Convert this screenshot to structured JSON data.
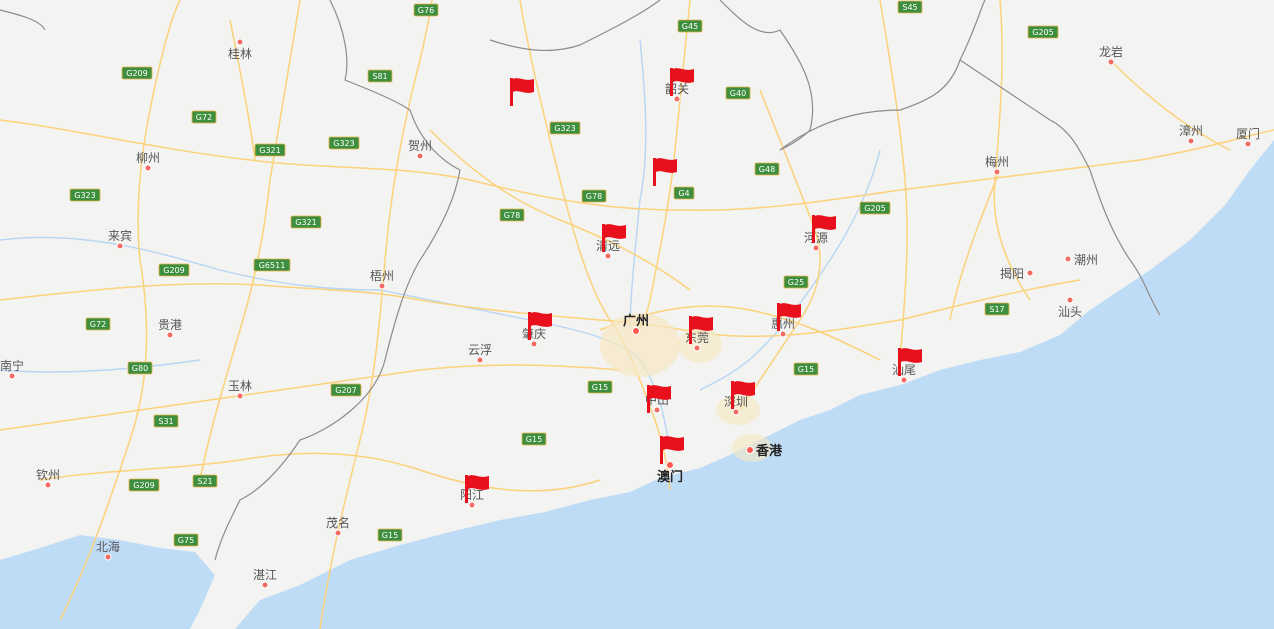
{
  "map": {
    "colors": {
      "land": "#f3f3f1",
      "sea": "#bfdcf7",
      "road": "#fbd27a",
      "border": "#8c8c8c",
      "river": "#b7d6f5",
      "highway_badge": "#3d8f3f",
      "flag": "#e8101c"
    },
    "cities": [
      {
        "id": "guilin",
        "name": "桂林",
        "major": false
      },
      {
        "id": "liuzhou",
        "name": "柳州",
        "major": false
      },
      {
        "id": "laibin",
        "name": "来宾",
        "major": false
      },
      {
        "id": "guigang",
        "name": "贵港",
        "major": false
      },
      {
        "id": "nanning",
        "name": "南宁",
        "major": false
      },
      {
        "id": "yulin",
        "name": "玉林",
        "major": false
      },
      {
        "id": "qinzhou",
        "name": "钦州",
        "major": false
      },
      {
        "id": "beihai",
        "name": "北海",
        "major": false
      },
      {
        "id": "wuzhou",
        "name": "梧州",
        "major": false
      },
      {
        "id": "hezhou",
        "name": "贺州",
        "major": false
      },
      {
        "id": "yunfu",
        "name": "云浮",
        "major": false
      },
      {
        "id": "maoming",
        "name": "茂名",
        "major": false
      },
      {
        "id": "zhanjiang",
        "name": "湛江",
        "major": false
      },
      {
        "id": "yangjiang",
        "name": "阳江",
        "major": false
      },
      {
        "id": "zhaoqing",
        "name": "肇庆",
        "major": false
      },
      {
        "id": "qingyuan",
        "name": "清远",
        "major": false
      },
      {
        "id": "shaoguan",
        "name": "韶关",
        "major": false
      },
      {
        "id": "guangzhou",
        "name": "广州",
        "major": true
      },
      {
        "id": "dongguan",
        "name": "东莞",
        "major": false
      },
      {
        "id": "zhongshan",
        "name": "中山",
        "major": false
      },
      {
        "id": "macau",
        "name": "澳门",
        "major": true
      },
      {
        "id": "shenzhen",
        "name": "深圳",
        "major": false
      },
      {
        "id": "hongkong",
        "name": "香港",
        "major": true
      },
      {
        "id": "huizhou",
        "name": "惠州",
        "major": false
      },
      {
        "id": "heyuan",
        "name": "河源",
        "major": false
      },
      {
        "id": "shanwei",
        "name": "汕尾",
        "major": false
      },
      {
        "id": "meizhou",
        "name": "梅州",
        "major": false
      },
      {
        "id": "jieyang",
        "name": "揭阳",
        "major": false
      },
      {
        "id": "chaozhou",
        "name": "潮州",
        "major": false
      },
      {
        "id": "shantou",
        "name": "汕头",
        "major": false
      },
      {
        "id": "longyan",
        "name": "龙岩",
        "major": false
      },
      {
        "id": "zhangzhou",
        "name": "漳州",
        "major": false
      },
      {
        "id": "xiamen",
        "name": "厦门",
        "major": false
      }
    ],
    "highways": [
      {
        "id": "g76",
        "label": "G76"
      },
      {
        "id": "g209a",
        "label": "G209"
      },
      {
        "id": "g72a",
        "label": "G72"
      },
      {
        "id": "g321a",
        "label": "G321"
      },
      {
        "id": "g323a",
        "label": "G323"
      },
      {
        "id": "g323b",
        "label": "G323"
      },
      {
        "id": "g321b",
        "label": "G321"
      },
      {
        "id": "g209b",
        "label": "G209"
      },
      {
        "id": "g6511",
        "label": "G6511"
      },
      {
        "id": "g72b",
        "label": "G72"
      },
      {
        "id": "g80",
        "label": "G80"
      },
      {
        "id": "s31",
        "label": "S31"
      },
      {
        "id": "g209c",
        "label": "G209"
      },
      {
        "id": "s21",
        "label": "S21"
      },
      {
        "id": "g75",
        "label": "G75"
      },
      {
        "id": "g207",
        "label": "G207"
      },
      {
        "id": "s81",
        "label": "S81"
      },
      {
        "id": "g323c",
        "label": "G323"
      },
      {
        "id": "g78a",
        "label": "G78"
      },
      {
        "id": "g78b",
        "label": "G78"
      },
      {
        "id": "g45",
        "label": "G45"
      },
      {
        "id": "g40",
        "label": "G40"
      },
      {
        "id": "g4",
        "label": "G4"
      },
      {
        "id": "g48",
        "label": "G48"
      },
      {
        "id": "g205a",
        "label": "G205"
      },
      {
        "id": "g205b",
        "label": "G205"
      },
      {
        "id": "g25",
        "label": "G25"
      },
      {
        "id": "g15a",
        "label": "G15"
      },
      {
        "id": "g15b",
        "label": "G15"
      },
      {
        "id": "g15c",
        "label": "G15"
      },
      {
        "id": "g15d",
        "label": "G15"
      },
      {
        "id": "s17",
        "label": "S17"
      },
      {
        "id": "s45",
        "label": "S45"
      }
    ],
    "flags": [
      {
        "id": "flag-northwest"
      },
      {
        "id": "flag-shaoguan"
      },
      {
        "id": "flag-north"
      },
      {
        "id": "flag-qingyuan"
      },
      {
        "id": "flag-heyuan"
      },
      {
        "id": "flag-zhaoqing"
      },
      {
        "id": "flag-dongguan"
      },
      {
        "id": "flag-huizhou"
      },
      {
        "id": "flag-shanwei"
      },
      {
        "id": "flag-zhongshan"
      },
      {
        "id": "flag-shenzhen"
      },
      {
        "id": "flag-macau"
      },
      {
        "id": "flag-yangjiang"
      }
    ]
  }
}
